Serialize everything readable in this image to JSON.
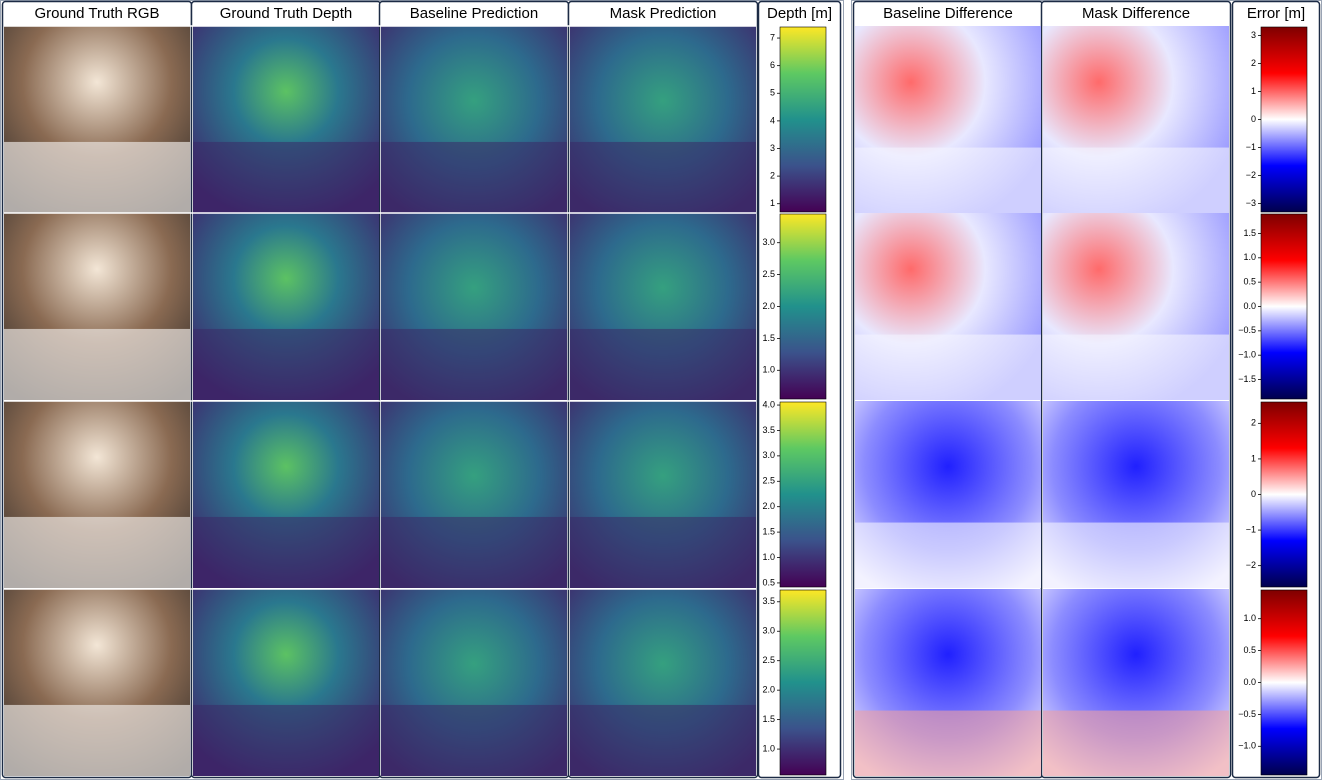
{
  "headers": {
    "left": [
      "Ground Truth RGB",
      "Ground Truth Depth",
      "Baseline Prediction",
      "Mask Prediction",
      "Depth [m]"
    ],
    "right": [
      "Baseline Difference",
      "Mask Difference",
      "Error [m]"
    ]
  },
  "depth_colorbars": [
    {
      "lim": [
        0.7,
        7.4
      ],
      "ticks": [
        1,
        2,
        3,
        4,
        5,
        6,
        7
      ]
    },
    {
      "lim": [
        0.55,
        3.45
      ],
      "ticks": [
        {
          "value": 1,
          "label": "1.0"
        },
        1.5,
        {
          "value": 2,
          "label": "2.0"
        },
        2.5,
        {
          "value": 3,
          "label": "3.0"
        }
      ]
    },
    {
      "lim": [
        0.42,
        4.06
      ],
      "ticks": [
        0.5,
        {
          "value": 1,
          "label": "1.0"
        },
        1.5,
        {
          "value": 2,
          "label": "2.0"
        },
        2.5,
        {
          "value": 3,
          "label": "3.0"
        },
        3.5,
        {
          "value": 4,
          "label": "4.0"
        }
      ]
    },
    {
      "lim": [
        0.56,
        3.7
      ],
      "ticks": [
        {
          "value": 1,
          "label": "1.0"
        },
        1.5,
        {
          "value": 2,
          "label": "2.0"
        },
        2.5,
        {
          "value": 3,
          "label": "3.0"
        },
        3.5
      ]
    }
  ],
  "error_colorbars": [
    {
      "lim": [
        -3.3,
        3.3
      ],
      "ticks": [
        {
          "value": -3,
          "label": "−3"
        },
        {
          "value": -2,
          "label": "−2"
        },
        {
          "value": -1,
          "label": "−1"
        },
        0,
        1,
        2,
        3
      ]
    },
    {
      "lim": [
        -1.9,
        1.9
      ],
      "ticks": [
        {
          "value": -1.5,
          "label": "−1.5"
        },
        {
          "value": -1,
          "label": "−1.0"
        },
        {
          "value": -0.5,
          "label": "−0.5"
        },
        {
          "value": 0,
          "label": "0.0"
        },
        0.5,
        {
          "value": 1,
          "label": "1.0"
        },
        1.5
      ]
    },
    {
      "lim": [
        -2.6,
        2.6
      ],
      "ticks": [
        {
          "value": -2,
          "label": "−2"
        },
        {
          "value": -1,
          "label": "−1"
        },
        0,
        1,
        2
      ]
    },
    {
      "lim": [
        -1.45,
        1.45
      ],
      "ticks": [
        {
          "value": -1,
          "label": "−1.0"
        },
        {
          "value": -0.5,
          "label": "−0.5"
        },
        {
          "value": 0,
          "label": "0.0"
        },
        0.5,
        {
          "value": 1,
          "label": "1.0"
        }
      ]
    }
  ]
}
